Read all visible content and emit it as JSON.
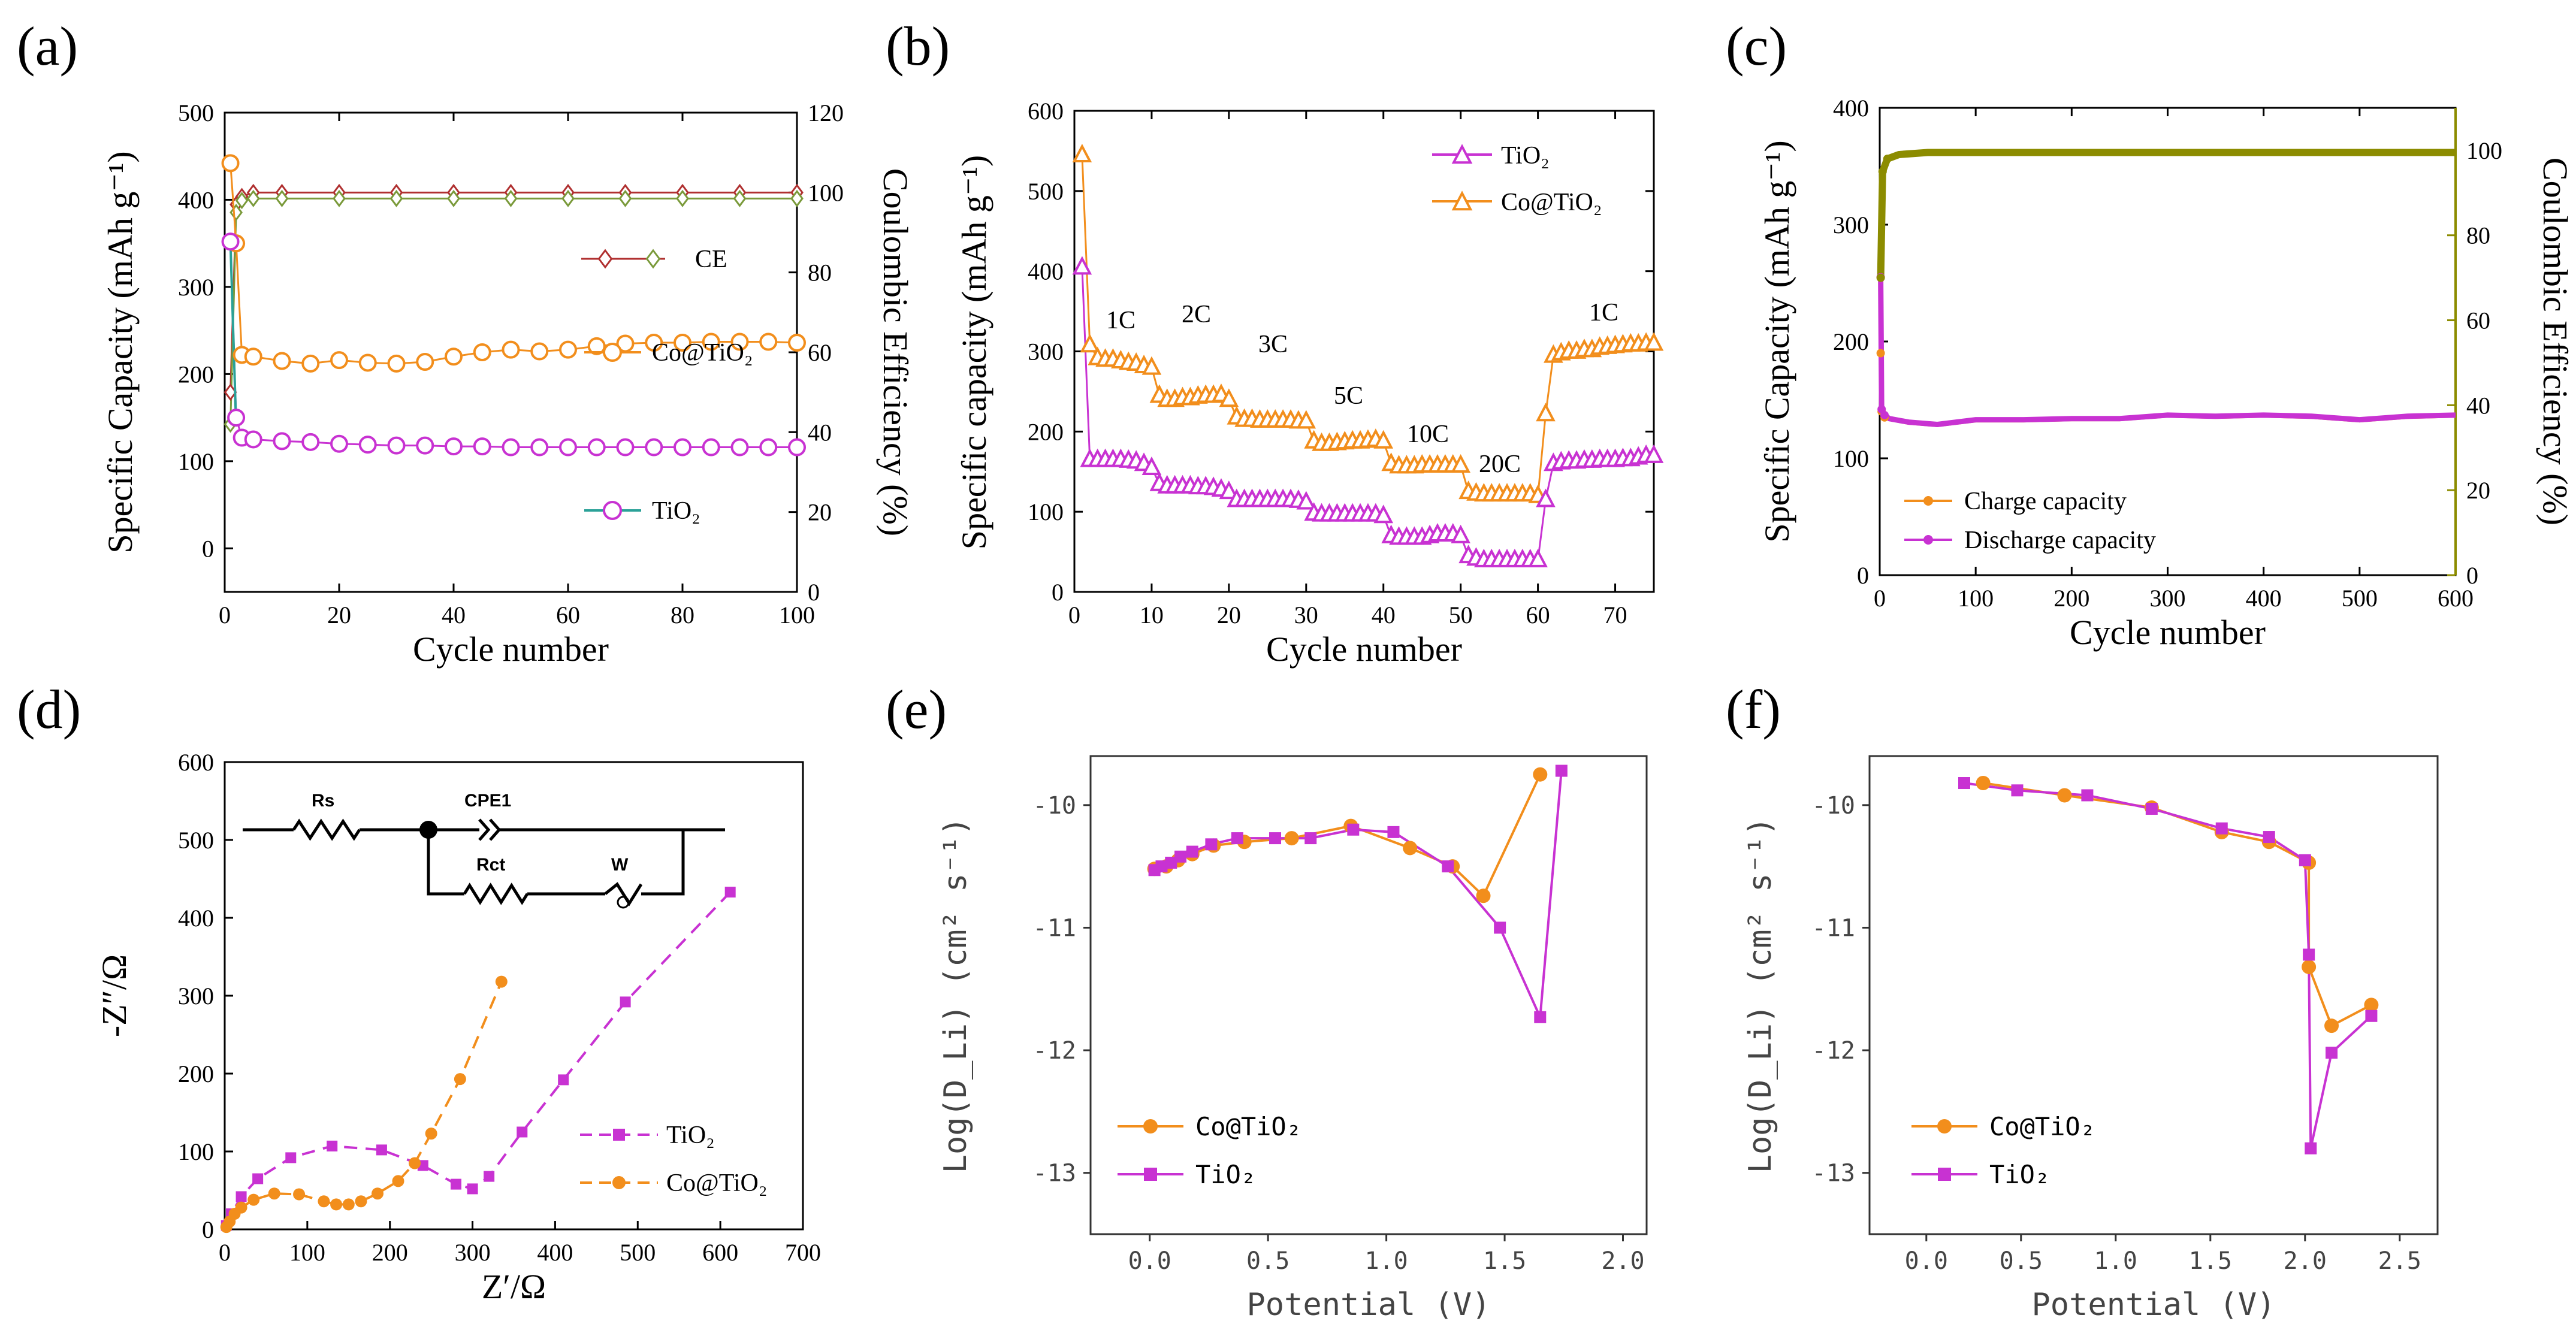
{
  "panel_labels": [
    "(a)",
    "(b)",
    "(c)",
    "(d)",
    "(e)",
    "(f)"
  ],
  "colors": {
    "orange": "#f28e1c",
    "magenta": "#c832d2",
    "olive": "#8c8c00",
    "ce_red": "#b03030",
    "ce_green": "#7a9a3a",
    "teal": "#2aa198"
  },
  "chart_data": [
    {
      "id": "a",
      "type": "scatter",
      "xlabel": "Cycle number",
      "ylabel": "Specific Capacity (mAh g⁻¹)",
      "y2label": "Coulombic Efficiency (%)",
      "xlim": [
        0,
        100
      ],
      "ylim": [
        -50,
        500
      ],
      "y2lim": [
        0,
        120
      ],
      "xticks": [
        "0",
        "20",
        "40",
        "60",
        "80",
        "100"
      ],
      "yticks": [
        "0",
        "100",
        "200",
        "300",
        "400",
        "500"
      ],
      "y2ticks": [
        "0",
        "20",
        "40",
        "60",
        "80",
        "100",
        "120"
      ],
      "legend": [
        "CE",
        "Co@TiO₂",
        "TiO₂"
      ],
      "series": [
        {
          "name": "Co@TiO₂",
          "axis": "left",
          "x": [
            1,
            2,
            3,
            5,
            10,
            15,
            20,
            25,
            30,
            35,
            40,
            45,
            50,
            55,
            60,
            65,
            70,
            75,
            80,
            85,
            90,
            95,
            100
          ],
          "values": [
            442,
            350,
            222,
            220,
            215,
            212,
            216,
            213,
            212,
            214,
            220,
            225,
            228,
            226,
            228,
            232,
            235,
            236,
            236,
            237,
            237,
            237,
            236
          ]
        },
        {
          "name": "TiO₂",
          "axis": "left",
          "x": [
            1,
            2,
            3,
            5,
            10,
            15,
            20,
            25,
            30,
            35,
            40,
            45,
            50,
            55,
            60,
            65,
            70,
            75,
            80,
            85,
            90,
            95,
            100
          ],
          "values": [
            352,
            150,
            127,
            125,
            123,
            122,
            120,
            119,
            118,
            118,
            117,
            117,
            116,
            116,
            116,
            116,
            116,
            116,
            116,
            116,
            116,
            116,
            116
          ]
        },
        {
          "name": "CE Co@TiO₂",
          "axis": "right",
          "x": [
            1,
            2,
            3,
            5,
            10,
            20,
            30,
            40,
            50,
            60,
            70,
            80,
            90,
            100
          ],
          "values": [
            50,
            97,
            99,
            100,
            100,
            100,
            100,
            100,
            100,
            100,
            100,
            100,
            100,
            100
          ]
        },
        {
          "name": "CE TiO₂",
          "axis": "right",
          "x": [
            1,
            2,
            3,
            5,
            10,
            20,
            30,
            40,
            50,
            60,
            70,
            80,
            90,
            100
          ],
          "values": [
            42,
            95,
            98,
            98.5,
            98.5,
            98.5,
            98.5,
            98.5,
            98.5,
            98.5,
            98.5,
            98.5,
            98.5,
            98.5
          ]
        }
      ]
    },
    {
      "id": "b",
      "type": "scatter",
      "xlabel": "Cycle number",
      "ylabel": "Specific capacity (mAh g⁻¹)",
      "xlim": [
        0,
        75
      ],
      "ylim": [
        0,
        600
      ],
      "xticks": [
        "0",
        "10",
        "20",
        "30",
        "40",
        "50",
        "60",
        "70"
      ],
      "yticks": [
        "0",
        "100",
        "200",
        "300",
        "400",
        "500",
        "600"
      ],
      "legend": [
        "TiO₂",
        "Co@TiO₂"
      ],
      "annotations": [
        "1C",
        "2C",
        "3C",
        "5C",
        "10C",
        "20C",
        "1C"
      ],
      "series": [
        {
          "name": "Co@TiO₂",
          "x": [
            1,
            2,
            3,
            4,
            5,
            6,
            7,
            8,
            9,
            10,
            11,
            12,
            13,
            14,
            15,
            16,
            17,
            18,
            19,
            20,
            21,
            22,
            23,
            24,
            25,
            26,
            27,
            28,
            29,
            30,
            31,
            32,
            33,
            34,
            35,
            36,
            37,
            38,
            39,
            40,
            41,
            42,
            43,
            44,
            45,
            46,
            47,
            48,
            49,
            50,
            51,
            52,
            53,
            54,
            55,
            56,
            57,
            58,
            59,
            60,
            61,
            62,
            63,
            64,
            65,
            66,
            67,
            68,
            69,
            70,
            71,
            72,
            73,
            74,
            75
          ],
          "values": [
            545,
            308,
            292,
            290,
            290,
            288,
            286,
            285,
            282,
            280,
            245,
            240,
            240,
            242,
            242,
            244,
            245,
            245,
            246,
            240,
            218,
            215,
            215,
            214,
            214,
            214,
            214,
            214,
            213,
            213,
            188,
            185,
            185,
            186,
            187,
            188,
            188,
            189,
            190,
            188,
            160,
            157,
            157,
            157,
            158,
            158,
            158,
            158,
            158,
            158,
            125,
            123,
            122,
            122,
            122,
            122,
            122,
            122,
            122,
            120,
            222,
            295,
            298,
            300,
            300,
            302,
            302,
            305,
            306,
            307,
            308,
            309,
            309,
            310,
            310
          ]
        },
        {
          "name": "TiO₂",
          "x": [
            1,
            2,
            3,
            4,
            5,
            6,
            7,
            8,
            9,
            10,
            11,
            12,
            13,
            14,
            15,
            16,
            17,
            18,
            19,
            20,
            21,
            22,
            23,
            24,
            25,
            26,
            27,
            28,
            29,
            30,
            31,
            32,
            33,
            34,
            35,
            36,
            37,
            38,
            39,
            40,
            41,
            42,
            43,
            44,
            45,
            46,
            47,
            48,
            49,
            50,
            51,
            52,
            53,
            54,
            55,
            56,
            57,
            58,
            59,
            60,
            61,
            62,
            63,
            64,
            65,
            66,
            67,
            68,
            69,
            70,
            71,
            72,
            73,
            74,
            75
          ],
          "values": [
            405,
            165,
            165,
            165,
            165,
            165,
            164,
            163,
            160,
            155,
            135,
            132,
            132,
            132,
            132,
            131,
            131,
            130,
            128,
            125,
            115,
            115,
            115,
            115,
            115,
            115,
            115,
            115,
            114,
            112,
            98,
            97,
            97,
            97,
            97,
            97,
            97,
            97,
            97,
            95,
            70,
            68,
            68,
            68,
            68,
            70,
            72,
            72,
            72,
            70,
            45,
            42,
            40,
            40,
            40,
            40,
            40,
            40,
            40,
            40,
            115,
            160,
            162,
            163,
            163,
            164,
            164,
            165,
            165,
            165,
            166,
            166,
            168,
            170,
            170
          ]
        }
      ]
    },
    {
      "id": "c",
      "type": "line",
      "xlabel": "Cycle number",
      "ylabel": "Specific Capacity (mAh g⁻¹)",
      "y2label": "Coulombic Efficiency (%)",
      "xlim": [
        0,
        600
      ],
      "ylim": [
        0,
        400
      ],
      "y2lim": [
        0,
        110
      ],
      "xticks": [
        "0",
        "100",
        "200",
        "300",
        "400",
        "500",
        "600"
      ],
      "yticks": [
        "0",
        "100",
        "200",
        "300",
        "400"
      ],
      "y2ticks": [
        "0",
        "20",
        "40",
        "60",
        "80",
        "100"
      ],
      "legend": [
        "Charge capacity",
        "Discharge capacity"
      ],
      "series": [
        {
          "name": "Charge capacity",
          "axis": "left",
          "x": [
            1,
            2,
            5,
            10,
            30,
            60,
            100,
            150,
            200,
            250,
            300,
            350,
            400,
            450,
            500,
            550,
            600
          ],
          "values": [
            190,
            140,
            135,
            133,
            130,
            128,
            132,
            132,
            133,
            133,
            136,
            135,
            136,
            135,
            132,
            135,
            136
          ]
        },
        {
          "name": "Discharge capacity",
          "axis": "left",
          "x": [
            1,
            2,
            5,
            10,
            30,
            60,
            100,
            150,
            200,
            250,
            300,
            350,
            400,
            450,
            500,
            550,
            600
          ],
          "values": [
            255,
            142,
            137,
            134,
            131,
            129,
            133,
            133,
            134,
            134,
            137,
            136,
            137,
            136,
            133,
            136,
            137
          ]
        },
        {
          "name": "Coulombic Efficiency",
          "axis": "right",
          "x": [
            1,
            3,
            8,
            20,
            50,
            100,
            200,
            300,
            400,
            500,
            600
          ],
          "values": [
            70,
            95,
            98,
            99,
            99.5,
            99.5,
            99.5,
            99.5,
            99.5,
            99.5,
            99.5
          ]
        }
      ]
    },
    {
      "id": "d",
      "type": "scatter",
      "xlabel": "Z′/Ω",
      "ylabel": "-Z″/Ω",
      "xlim": [
        0,
        700
      ],
      "ylim": [
        0,
        600
      ],
      "xticks": [
        "0",
        "100",
        "200",
        "300",
        "400",
        "500",
        "600",
        "700"
      ],
      "yticks": [
        "0",
        "100",
        "200",
        "300",
        "400",
        "500",
        "600"
      ],
      "legend": [
        "TiO₂",
        "Co@TiO₂"
      ],
      "circuit_labels": [
        "Rs",
        "CPE1",
        "Rct",
        "W"
      ],
      "series": [
        {
          "name": "TiO₂",
          "x": [
            2,
            8,
            20,
            40,
            80,
            130,
            190,
            240,
            280,
            300,
            320,
            360,
            410,
            485,
            612
          ],
          "values": [
            5,
            20,
            42,
            65,
            92,
            107,
            102,
            82,
            58,
            52,
            68,
            125,
            192,
            292,
            433
          ]
        },
        {
          "name": "Co@TiO₂",
          "x": [
            2,
            6,
            12,
            20,
            35,
            60,
            90,
            120,
            135,
            150,
            165,
            185,
            210,
            230,
            250,
            285,
            335
          ],
          "values": [
            3,
            10,
            20,
            28,
            38,
            46,
            45,
            36,
            32,
            32,
            36,
            46,
            62,
            85,
            123,
            193,
            318
          ]
        }
      ]
    },
    {
      "id": "e",
      "type": "line",
      "xlabel": "Potential (V)",
      "ylabel": "Log(D_Li) (cm² s⁻¹)",
      "xlim": [
        -0.25,
        2.1
      ],
      "ylim": [
        -13.5,
        -9.6
      ],
      "xticks": [
        "0.0",
        "0.5",
        "1.0",
        "1.5",
        "2.0"
      ],
      "yticks": [
        "-10",
        "-11",
        "-12",
        "-13"
      ],
      "legend": [
        "Co@TiO₂",
        "TiO₂"
      ],
      "series": [
        {
          "name": "Co@TiO₂",
          "x": [
            0.02,
            0.07,
            0.12,
            0.18,
            0.27,
            0.4,
            0.6,
            0.85,
            1.1,
            1.28,
            1.41,
            1.65
          ],
          "values": [
            -10.52,
            -10.5,
            -10.45,
            -10.4,
            -10.33,
            -10.3,
            -10.27,
            -10.17,
            -10.35,
            -10.5,
            -10.74,
            -9.75
          ]
        },
        {
          "name": "TiO₂",
          "x": [
            0.02,
            0.05,
            0.09,
            0.13,
            0.18,
            0.26,
            0.37,
            0.53,
            0.68,
            0.86,
            1.03,
            1.26,
            1.48,
            1.65,
            1.74
          ],
          "values": [
            -10.53,
            -10.5,
            -10.47,
            -10.42,
            -10.38,
            -10.32,
            -10.27,
            -10.27,
            -10.27,
            -10.2,
            -10.22,
            -10.5,
            -11.0,
            -11.73,
            -9.72
          ]
        }
      ]
    },
    {
      "id": "f",
      "type": "line",
      "xlabel": "Potential (V)",
      "ylabel": "Log(D_Li) (cm² s⁻¹)",
      "xlim": [
        -0.3,
        2.7
      ],
      "ylim": [
        -13.5,
        -9.6
      ],
      "xticks": [
        "0.0",
        "0.5",
        "1.0",
        "1.5",
        "2.0",
        "2.5"
      ],
      "yticks": [
        "-10",
        "-11",
        "-12",
        "-13"
      ],
      "legend": [
        "Co@TiO₂",
        "TiO₂"
      ],
      "series": [
        {
          "name": "Co@TiO₂",
          "x": [
            0.3,
            0.73,
            1.19,
            1.56,
            1.81,
            2.02,
            2.02,
            2.14,
            2.35
          ],
          "values": [
            -9.82,
            -9.92,
            -10.02,
            -10.22,
            -10.3,
            -10.47,
            -11.32,
            -11.8,
            -11.63
          ]
        },
        {
          "name": "TiO₂",
          "x": [
            0.2,
            0.48,
            0.85,
            1.19,
            1.56,
            1.81,
            2.0,
            2.02,
            2.03,
            2.14,
            2.35
          ],
          "values": [
            -9.82,
            -9.88,
            -9.92,
            -10.03,
            -10.19,
            -10.26,
            -10.45,
            -11.22,
            -12.8,
            -12.02,
            -11.72
          ]
        }
      ]
    }
  ]
}
